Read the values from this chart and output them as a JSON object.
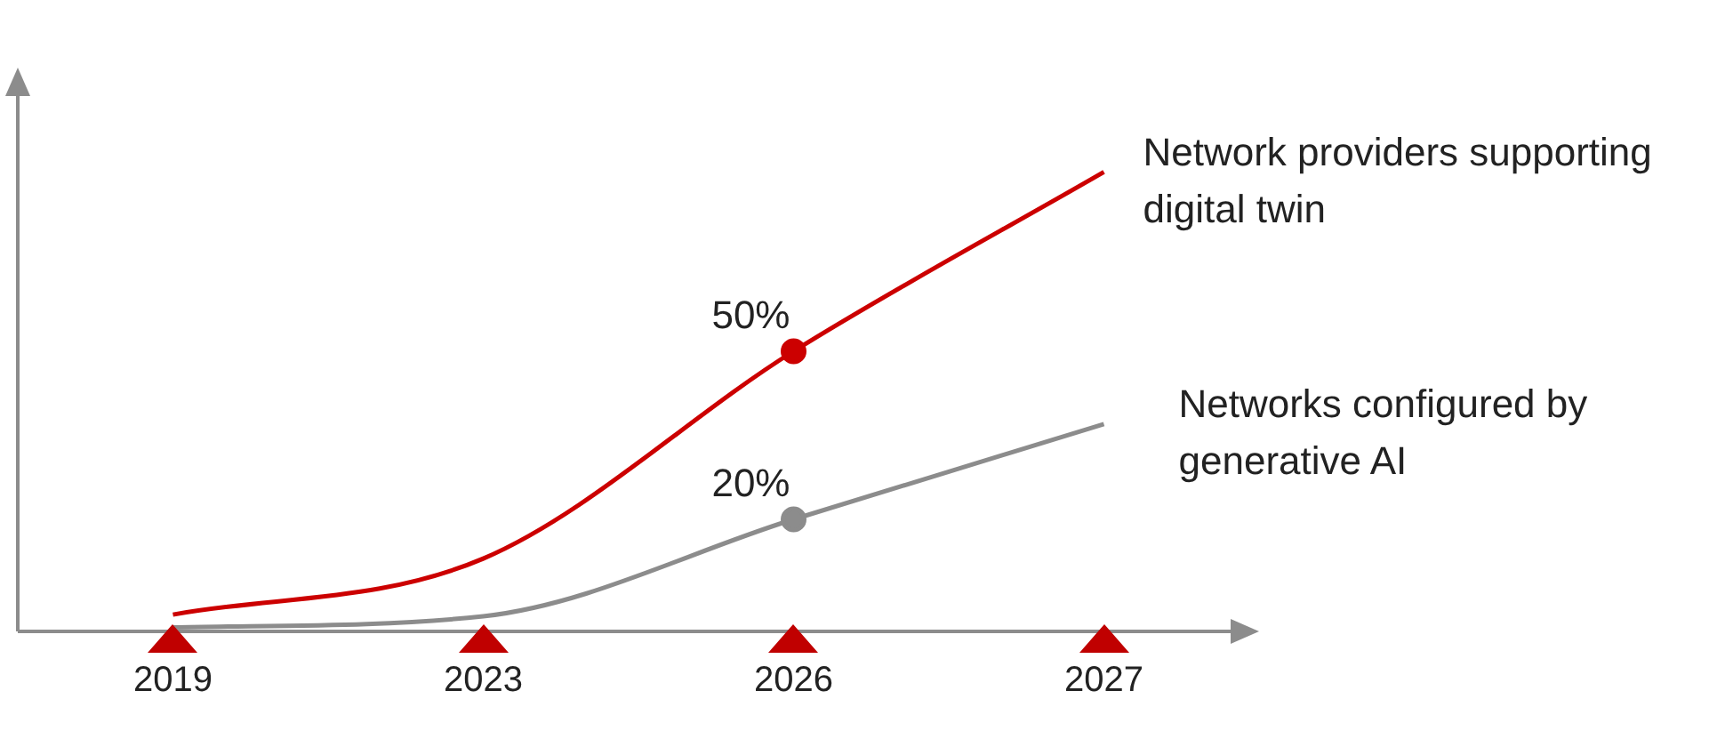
{
  "chart_data": {
    "type": "line",
    "categories": [
      "2019",
      "2023",
      "2026",
      "2027"
    ],
    "series": [
      {
        "name": "Network providers supporting digital twin",
        "color": "#cc0000",
        "values": [
          3,
          13,
          50,
          82
        ],
        "value_labels": [
          null,
          null,
          "50%",
          null
        ]
      },
      {
        "name": "Networks configured by generative AI",
        "color": "#8c8c8c",
        "values": [
          0.7,
          2.7,
          20,
          37
        ],
        "value_labels": [
          null,
          null,
          "20%",
          null
        ]
      }
    ],
    "tick_labels": "x",
    "grid": false,
    "legend": false
  }
}
